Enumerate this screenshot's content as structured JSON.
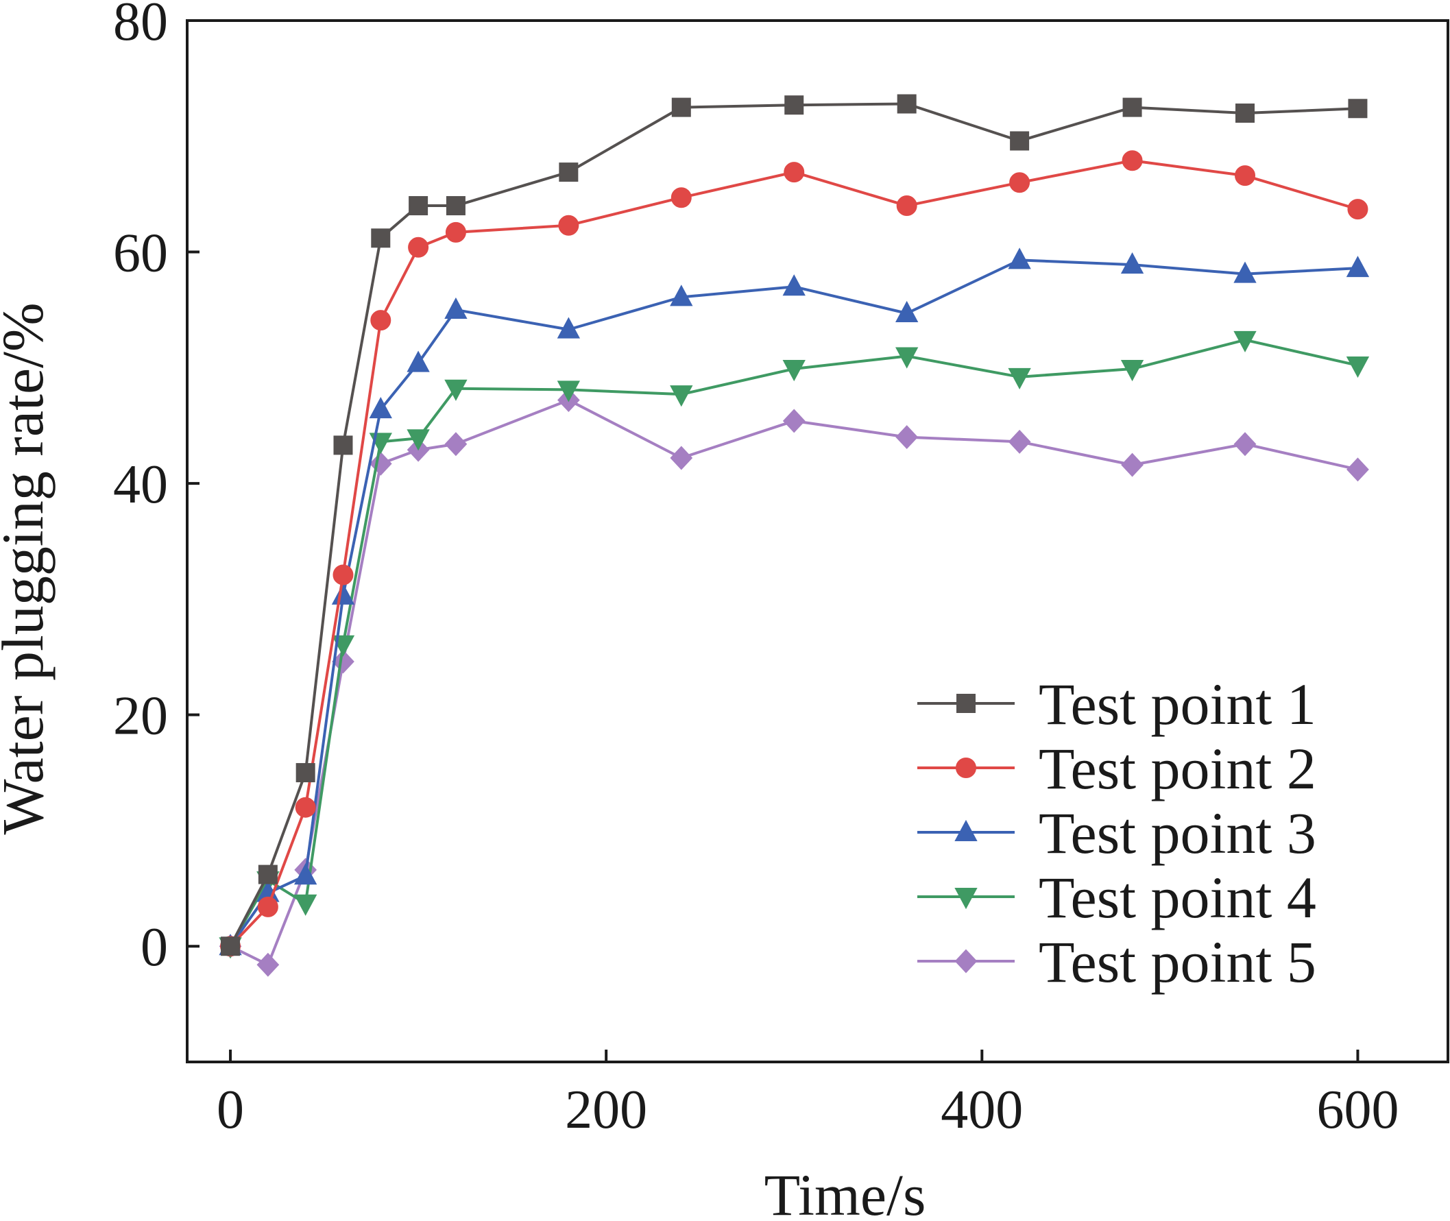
{
  "chart_data": {
    "type": "line",
    "xlabel": "Time/s",
    "ylabel": "Water plugging rate/%",
    "xlim": [
      -23,
      648
    ],
    "ylim": [
      -10,
      80
    ],
    "xticks": [
      0,
      200,
      400,
      600
    ],
    "yticks": [
      0,
      20,
      40,
      60,
      80
    ],
    "grid": false,
    "legend": "bottom-right",
    "series": [
      {
        "name": "Test point 1",
        "color": "#555150",
        "marker": "square",
        "x": [
          0,
          20,
          40,
          60,
          80,
          100,
          120,
          180,
          240,
          300,
          360,
          420,
          480,
          540,
          600
        ],
        "y": [
          0,
          6.2,
          15.0,
          43.3,
          61.2,
          64.0,
          64.0,
          66.9,
          72.5,
          72.7,
          72.8,
          69.6,
          72.5,
          72.0,
          72.4
        ]
      },
      {
        "name": "Test point 2",
        "color": "#e04846",
        "marker": "circle",
        "x": [
          0,
          20,
          40,
          60,
          80,
          100,
          120,
          180,
          240,
          300,
          360,
          420,
          480,
          540,
          600
        ],
        "y": [
          0,
          3.4,
          12.0,
          32.1,
          54.1,
          60.4,
          61.7,
          62.3,
          64.7,
          66.9,
          64.0,
          66.0,
          67.9,
          66.6,
          63.7
        ]
      },
      {
        "name": "Test point 3",
        "color": "#3b62b3",
        "marker": "triangle-up",
        "x": [
          0,
          20,
          40,
          60,
          80,
          100,
          120,
          180,
          240,
          300,
          360,
          420,
          480,
          540,
          600
        ],
        "y": [
          0,
          4.6,
          6.1,
          30.3,
          46.4,
          50.4,
          55.0,
          53.3,
          56.1,
          57.0,
          54.7,
          59.3,
          58.9,
          58.1,
          58.6
        ]
      },
      {
        "name": "Test point 4",
        "color": "#3f9a63",
        "marker": "triangle-down",
        "x": [
          0,
          20,
          40,
          60,
          80,
          100,
          120,
          180,
          240,
          300,
          360,
          420,
          480,
          540,
          600
        ],
        "y": [
          0,
          5.7,
          3.7,
          26.1,
          43.6,
          43.9,
          48.2,
          48.1,
          47.7,
          49.9,
          51.0,
          49.2,
          49.9,
          52.4,
          50.2
        ]
      },
      {
        "name": "Test point 5",
        "color": "#a57fc2",
        "marker": "diamond",
        "x": [
          0,
          20,
          40,
          60,
          80,
          100,
          120,
          180,
          240,
          300,
          360,
          420,
          480,
          540,
          600
        ],
        "y": [
          0,
          -1.6,
          6.6,
          24.6,
          41.7,
          42.9,
          43.4,
          47.2,
          42.2,
          45.4,
          44.0,
          43.6,
          41.6,
          43.4,
          41.2
        ]
      }
    ]
  }
}
